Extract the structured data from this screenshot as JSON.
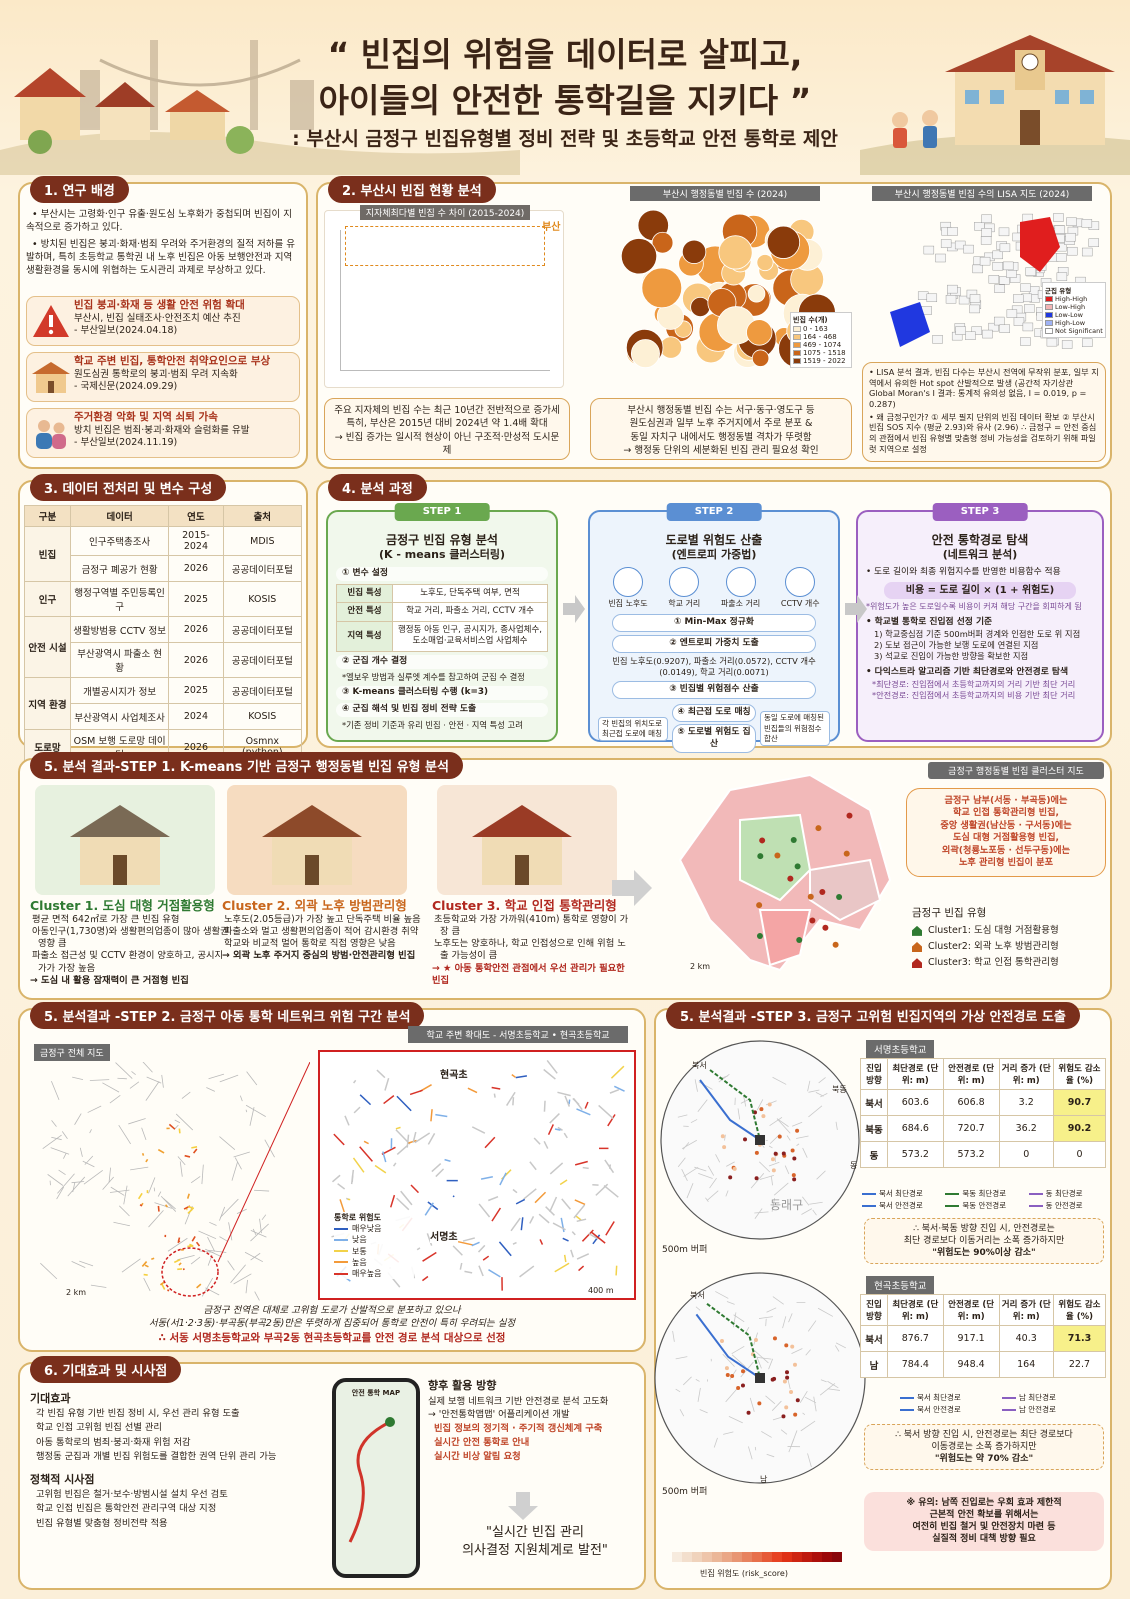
{
  "header": {
    "title_line1": "“ 빈집의 위험을 데이터로 살피고,",
    "title_line2": "아이들의 안전한 통학길을 지키다 ”",
    "subtitle": ": 부산시 금정구 빈집유형별 정비 전략 및 초등학교 안전 통학로 제안"
  },
  "s1": {
    "heading": "1. 연구 배경",
    "paragraphs": [
      "• 부산시는 고령화·인구 유출·원도심 노후화가 중첩되며 빈집이 지속적으로 증가하고 있다.",
      "• 방치된 빈집은 붕괴·화재·범죄 우려와 주거환경의 질적 저하를 유발하며, 특히 초등학교 통학권 내 노후 빈집은 아동 보행안전과 지역 생활환경을 동시에 위협하는 도시관리 과제로 부상하고 있다."
    ],
    "news": [
      {
        "title": "빈집 붕괴·화재 등 생활 안전 위험 확대",
        "body": "부산시, 빈집 실태조사·안전조치 예산 추진",
        "source": "- 부산일보(2024.04.18)"
      },
      {
        "title": "학교 주변 빈집, 통학안전 취약요인으로 부상",
        "body": "원도심권 통학로의 붕괴·범죄 우려 지속화",
        "source": "- 국제신문(2024.09.29)"
      },
      {
        "title": "주거환경 악화 및 지역 쇠퇴 가속",
        "body": "방치 빈집은 범죄·붕괴·화재와 슬럼화를 유발",
        "source": "- 부산일보(2024.11.19)"
      }
    ]
  },
  "s2": {
    "heading": "2. 부산시 빈집 현황 분석",
    "chart_title": "지자체최다별 빈집 수 차이 (2015-2024)",
    "chart_label": "부산",
    "map1_title": "부산시 행정동별 빈집 수 (2024)",
    "map1_legend_title": "빈집 수(개)",
    "map1_legend": [
      "0 - 163",
      "164 - 468",
      "469 - 1074",
      "1075 - 1518",
      "1519 - 2022"
    ],
    "map2_title": "부산시 행정동별 빈집 수의 LISA 지도 (2024)",
    "map2_legend_title": "군집 유형",
    "map2_legend": [
      "High-High",
      "Low-High",
      "Low-Low",
      "High-Low",
      "Not Significant"
    ],
    "box1": [
      "주요 지자체의 빈집 수는 최근 10년간 전반적으로 증가세",
      "특히, 부산은 2015년 대비 2024년 약 1.4배 확대",
      "→ 빈집 증가는 일시적 현상이 아닌 구조적·만성적 도시문제"
    ],
    "box2": [
      "부산시 행정동별 빈집 수는 서구·동구·영도구 등",
      "원도심권과 일부 노후 주거지에서 주로 분포 &",
      "동일 자치구 내에서도 행정동별 격차가 뚜렷함",
      "→ 행정동 단위의 세분화된 빈집 관리 필요성 확인"
    ],
    "box3": [
      "• LISA 분석 결과, 빈집 다수는 부산시 전역에 무작위 분포, 일부 지역에서 유의한 Hot spot 산발적으로 발생 (공간적 자기상관 Global Moran's I 결과: 통계적 유의성 없음, I = 0.019, p = 0.287)",
      "• 왜 금정구인가? ① 세부 필지 단위의 빈집 데이터 확보 ② 부산시 빈집 SOS 지수 (평균 2.93)와 유사 (2.96) ∴ 금정구 = 안전 중심의 관점에서 빈집 유형별 맞춤형 정비 가능성을 검토하기 위해 파일럿 지역으로 설정"
    ]
  },
  "s3": {
    "heading": "3. 데이터 전처리 및 변수 구성",
    "header": [
      "구분",
      "데이터",
      "연도",
      "출처"
    ],
    "groups": [
      {
        "category": "빈집",
        "rows": [
          [
            "인구주택총조사",
            "2015-2024",
            "MDIS"
          ],
          [
            "금정구 폐공가 현황",
            "2026",
            "공공데이터포털"
          ]
        ]
      },
      {
        "category": "인구",
        "rows": [
          [
            "행정구역별 주민등록인구",
            "2025",
            "KOSIS"
          ]
        ]
      },
      {
        "category": "안전 시설",
        "rows": [
          [
            "생활방범용 CCTV 정보",
            "2026",
            "공공데이터포털"
          ],
          [
            "부산광역시 파출소 현황",
            "2026",
            "공공데이터포털"
          ]
        ]
      },
      {
        "category": "지역 환경",
        "rows": [
          [
            "개별공시지가 정보",
            "2025",
            "공공데이터포털"
          ],
          [
            "부산광역시 사업체조사",
            "2024",
            "KOSIS"
          ]
        ]
      },
      {
        "category": "도로망",
        "rows": [
          [
            "OSM 보행 도로망 데이터",
            "2026",
            "Osmnx (python)"
          ]
        ]
      }
    ]
  },
  "s4": {
    "heading": "4. 분석 과정",
    "step1": {
      "label": "STEP 1",
      "title": "금정구 빈집 유형 분석",
      "subtitle": "(K - means 클러스터링)",
      "item1": "① 변수 설정",
      "variables": [
        [
          "빈집 특성",
          "노후도, 단독주택 여부, 면적"
        ],
        [
          "안전 특성",
          "학교 거리, 파출소 거리, CCTV 개수"
        ],
        [
          "지역 특성",
          "행정동 아동 인구, 공시지가, 종사업체수, 도소매업·교육서비스업 사업체수"
        ]
      ],
      "item2": "② 군집 개수 결정",
      "note2": "*엘보우 방법과 실루엣 계수를 참고하여 군집 수 결정",
      "item3": "③ K-means 클러스터링 수행 (k=3)",
      "item4": "④ 군집 해석 및 빈집 정비 전략 도출",
      "note4": "*기존 정비 기준과 유리 빈집 · 안전 · 지역 특성 고려"
    },
    "step2": {
      "label": "STEP 2",
      "title": "도로별 위험도 산출",
      "subtitle": "(엔트로피 가중법)",
      "icons": [
        "빈집 노후도",
        "학교 거리",
        "파출소 거리",
        "CCTV 개수"
      ],
      "item1": "① Min-Max 정규화",
      "item2": "② 엔트로피 가중치 도출",
      "weights": "빈집 노후도(0.9207), 파출소 거리(0.0572), CCTV 개수(0.0149), 학교 거리(0.0071)",
      "item3": "③ 빈집별 위험점수 산출",
      "item4": "④ 최근접 도로 매칭",
      "item5": "⑤ 도로별 위험도 집산",
      "side_left": "각 빈집의 위치도로 최근접 도로에 매칭",
      "side_right": "동일 도로에 매칭된 빈집들의 위험점수 합산"
    },
    "step3": {
      "label": "STEP 3",
      "title": "안전 통학경로 탐색",
      "subtitle": "(네트워크 분석)",
      "line1": "• 도로 길이와 최종 위험지수를 반영한 비용함수 적용",
      "formula": "비용 = 도로 길이 × (1 + 위험도)",
      "note1": "*위험도가 높은 도로일수록 비용이 커져 해당 구간을 회피하게 됨",
      "line2": "• 학교별 통학로 진입점 선정 기준",
      "criteria": [
        "1) 학교중심점 기준 500m버퍼 경계와 인접한 도로 위 지점",
        "2) 도보 접근이 가능한 보행 도로에 연결된 지점",
        "3) 석교로 진입이 가능한 방향을 확보한 지점"
      ],
      "line3": "• 다익스트라 알고리즘 기반 최단경로와 안전경로 탐색",
      "notes": [
        "*최단경로: 진입점에서 초등학교까지의 거리 기반 최단 거리",
        "*안전경로: 진입점에서 초등학교까지의 비용 기반 최단 거리"
      ]
    }
  },
  "s5a": {
    "heading": "5. 분석 결과-STEP 1. K-means  기반 금정구 행정동별 빈집 유형 분석",
    "clusters": [
      {
        "title": "Cluster 1. 도심 대형 거점활용형",
        "bullets": [
          "평균 면적 642㎡로 가장 큰 빈집 유형",
          "아동인구(1,730명)와 생활편의업종이 많아 생활권 영향 큼",
          "파출소 접근성 및 CCTV 환경이 양호하고, 공시지가가 가장 높음"
        ],
        "conclusion": "→ 도심 내 활용 잠재력이 큰 거점형 빈집"
      },
      {
        "title": "Cluster 2. 외곽 노후 방범관리형",
        "bullets": [
          "노후도(2.05등급)가 가장 높고 단독주택 비율 높음",
          "파출소와 멀고 생활편의업종이 적어 감시환경 취약",
          "학교와 비교적 멀어 통학로 직접 영향은 낮음"
        ],
        "conclusion": "→ 외곽 노후 주거지 중심의 방범·안전관리형 빈집"
      },
      {
        "title": "Cluster 3. 학교 인접 통학관리형",
        "bullets": [
          "초등학교와 가장 가까워(410m) 통학로 영향이 가장 큼",
          "노후도는 양호하나, 학교 인접성으로 인해 위험 노출 가능성이 큼"
        ],
        "conclusion": "→ ★ 아동 통학안전 관점에서 우선 관리가 필요한 빈집"
      }
    ],
    "map_title": "금정구 행정동별 빈집 클러스터 지도",
    "callout": [
      "금정구 남부(서동 · 부곡동)에는",
      "학교 인접 통학관리형 빈집,",
      "중앙 생활권(남산동 · 구서동)에는",
      "도심 대형 거점활용형 빈집,",
      "외곽(청룡노포동 · 선두구동)에는",
      "노후 관리형 빈집이 분포"
    ],
    "legend_title": "금정구 빈집 유형",
    "legend": [
      "Cluster1: 도심 대형 거점활용형",
      "Cluster2: 외곽 노후 방범관리형",
      "Cluster3: 학교 인접 통학관리형"
    ],
    "scale": "2 km"
  },
  "s5b": {
    "heading": "5. 분석결과 -STEP 2. 금정구 아동 통학 네트워크 위험 구간 분석",
    "map_label": "금정구 전체 지도",
    "inset_title": "학교 주변 확대도 - 서명초등학교 • 현곡초등학교",
    "school_a": "현곡초",
    "school_b": "서명초",
    "legend_title": "통학로 위험도",
    "legend": [
      "매우낮음",
      "낮음",
      "보통",
      "높음",
      "매우높음"
    ],
    "scale_left": "2 km",
    "scale_right": "400 m",
    "summary": [
      "금정구 전역은 대체로 고위험 도로가 산발적으로 분포하고 있으나",
      "서동(서1·2·3동)·부곡동(부곡2동)만은 뚜렷하게 집중되어 통학로 안전이 특히 우려되는 실정",
      "∴ 서동 서명초등학교와 부곡2동 현곡초등학교를 안전 경로 분석 대상으로 선정"
    ]
  },
  "s6": {
    "heading": "6. 기대효과 및 시사점",
    "effects_title": "기대효과",
    "effects": [
      "각 빈집 유형 기반 빈집 정비 시, 우선 관리 유형 도출",
      "학교 인접 고위험 빈집 선별 관리",
      "아동 통학로의 범죄·붕괴·화재 위험 저감",
      "행정동 군집과 개별 빈집 위험도를 결합한 권역 단위 관리 가능"
    ],
    "policy_title": "정책적 시사점",
    "policy": [
      "고위험 빈집은 철거·보수·방범시설 설치 우선 검토",
      "학교 인접 빈집은 통학안전 관리구역 대상 지정",
      "빈집 유형별 맞춤형 정비전략 적용"
    ],
    "phone_title": "안전 통학 MAP",
    "future_title": "향후 활용 방향",
    "future_lines": [
      "실제 보행 네트워크 기반 안전경로 분석 고도화",
      "→ '안전통학맵맵' 어플리케이션 개발"
    ],
    "future_bullets": [
      "빈집 정보의 정기적 · 주기적 갱신체계 구축",
      "실시간 안전 통학로 안내",
      "실시간 비상 알림 요청"
    ],
    "conclusion": [
      "\"실시간 빈집 관리",
      "의사결정 지원체계로 발전\""
    ]
  },
  "s5c": {
    "heading": "5. 분석결과 -STEP 3. 금정구 고위험 빈집지역의  가상 안전경로 도출",
    "table_header": [
      "진입 방향",
      "최단경로 (단위: m)",
      "안전경로 (단위: m)",
      "거리 증가 (단위: m)",
      "위험도 감소율 (%)"
    ],
    "school1": {
      "name": "서명초등학교",
      "map_labels": [
        "북서",
        "북동",
        "동",
        "동래구"
      ],
      "rows": [
        [
          "북서",
          603.6,
          606.8,
          3.2,
          90.7
        ],
        [
          "북동",
          684.6,
          720.7,
          36.2,
          90.2
        ],
        [
          "동",
          573.2,
          573.2,
          0,
          0
        ]
      ],
      "legend": [
        "북서 최단경로",
        "북동 최단경로",
        "동 최단경로",
        "북서 안전경로",
        "북동 안전경로",
        "동 안전경로"
      ],
      "conclusion": [
        "∴ 북서·북동 방향 진입 시, 안전경로는",
        "최단 경로보다 이동거리는 소폭 증가하지만",
        "\"위험도는 90%이상 감소\""
      ],
      "buffer": "500m 버퍼"
    },
    "school2": {
      "name": "현곡초등학교",
      "map_labels": [
        "북서",
        "남"
      ],
      "rows": [
        [
          "북서",
          876.7,
          917.1,
          40.3,
          71.3
        ],
        [
          "남",
          784.4,
          948.4,
          164,
          22.7
        ]
      ],
      "legend": [
        "북서 최단경로",
        "남 최단경로",
        "북서 안전경로",
        "남 안전경로"
      ],
      "conclusion": [
        "∴ 북서 방향 진입 시, 안전경로는 최단 경로보다",
        "이동경로는 소폭 증가하지만",
        "\"위험도는 약 70% 감소\""
      ],
      "buffer": "500m 버퍼"
    },
    "note": [
      "※ 유의: 남쪽 진입로는 우회 효과 제한적",
      "근본적 안전 확보를 위해서는",
      "여전히 빈집 철거 및 안전장치 마련 등",
      "실질적 정비 대책 방향 필요"
    ],
    "colorbar_label": "빈집 위험도 (risk_score)"
  }
}
